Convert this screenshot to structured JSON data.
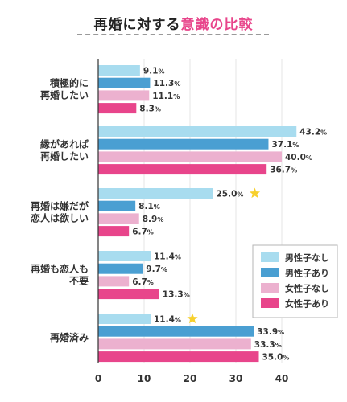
{
  "title": {
    "prefix": "再婚に対する",
    "accent": "意識の比較"
  },
  "colors": {
    "male_no_child": "#a8dcef",
    "male_child": "#4a9fd2",
    "female_no_child": "#ecb1cf",
    "female_child": "#e8458b",
    "star": "#f7d02c",
    "grid": "#e6e6e6",
    "axis": "#333333"
  },
  "chart_data": {
    "type": "bar",
    "orientation": "horizontal",
    "title": "再婚に対する意識の比較",
    "categories": [
      [
        "積極的に",
        "再婚したい"
      ],
      [
        "縁があれば",
        "再婚したい"
      ],
      [
        "再婚は嫌だが",
        "恋人は欲しい"
      ],
      [
        "再婚も恋人も",
        "不要"
      ],
      [
        "再婚済み"
      ]
    ],
    "series": [
      {
        "name": "男性子なし",
        "values": [
          9.1,
          43.2,
          25.0,
          11.4,
          11.4
        ]
      },
      {
        "name": "男性子あり",
        "values": [
          11.3,
          37.1,
          8.1,
          9.7,
          33.9
        ]
      },
      {
        "name": "女性子なし",
        "values": [
          11.1,
          40.0,
          8.9,
          6.7,
          33.3
        ]
      },
      {
        "name": "女性子あり",
        "values": [
          8.3,
          36.7,
          6.7,
          13.3,
          35.0
        ]
      }
    ],
    "value_suffix": "%",
    "xlim": [
      0,
      45
    ],
    "xticks": [
      0,
      10,
      20,
      30,
      40
    ],
    "star_markers": [
      {
        "category_index": 2,
        "series_index": 0
      },
      {
        "category_index": 4,
        "series_index": 0
      }
    ],
    "grid": true,
    "legend_position": "bottom-right"
  }
}
